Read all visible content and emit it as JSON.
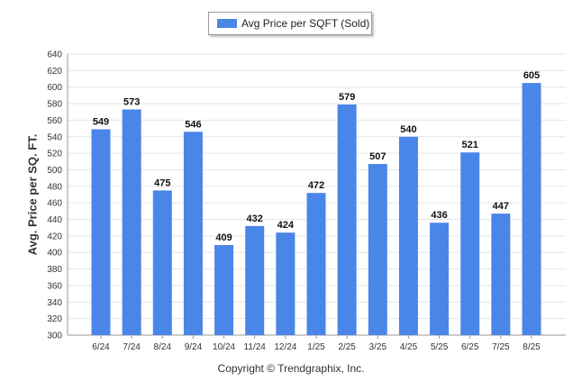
{
  "chart_data": {
    "type": "bar",
    "categories": [
      "6/24",
      "7/24",
      "8/24",
      "9/24",
      "10/24",
      "11/24",
      "12/24",
      "1/25",
      "2/25",
      "3/25",
      "4/25",
      "5/25",
      "6/25",
      "7/25",
      "8/25"
    ],
    "series": [
      {
        "name": "Avg Price per SQFT (Sold)",
        "values": [
          549,
          573,
          475,
          546,
          409,
          432,
          424,
          472,
          579,
          507,
          540,
          436,
          521,
          447,
          605
        ]
      }
    ],
    "ylabel": "Avg. Price per SQ. FT.",
    "xlabel": "",
    "ylim": [
      300,
      640
    ],
    "ytick_step": 20,
    "grid": true,
    "legend_position": "top-center",
    "bar_color": "#4a86e8",
    "data_labels": true
  },
  "footer": {
    "copyright": "Copyright © Trendgraphix, Inc."
  }
}
